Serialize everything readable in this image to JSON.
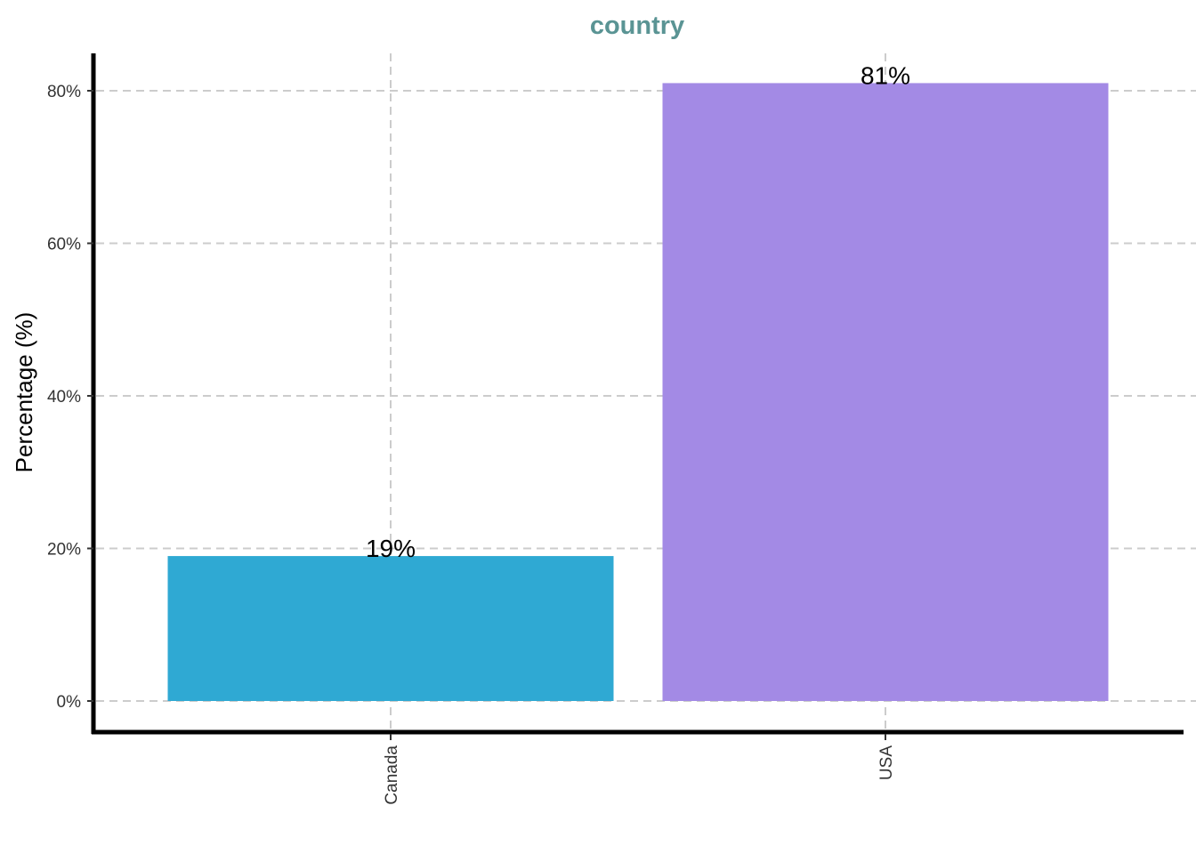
{
  "chart_data": {
    "type": "bar",
    "title": "country",
    "title_color": "#5a9494",
    "xlabel": "",
    "ylabel": "Percentage (%)",
    "categories": [
      "Canada",
      "USA"
    ],
    "values": [
      19,
      81
    ],
    "value_labels": [
      "19%",
      "81%"
    ],
    "bar_colors": [
      "#2fa9d3",
      "#a38ae5"
    ],
    "ylim": [
      -4,
      85
    ],
    "yticks": [
      0,
      20,
      40,
      60,
      80
    ],
    "ytick_labels": [
      "0%",
      "20%",
      "40%",
      "60%",
      "80%"
    ],
    "grid": true,
    "legend": "none"
  }
}
